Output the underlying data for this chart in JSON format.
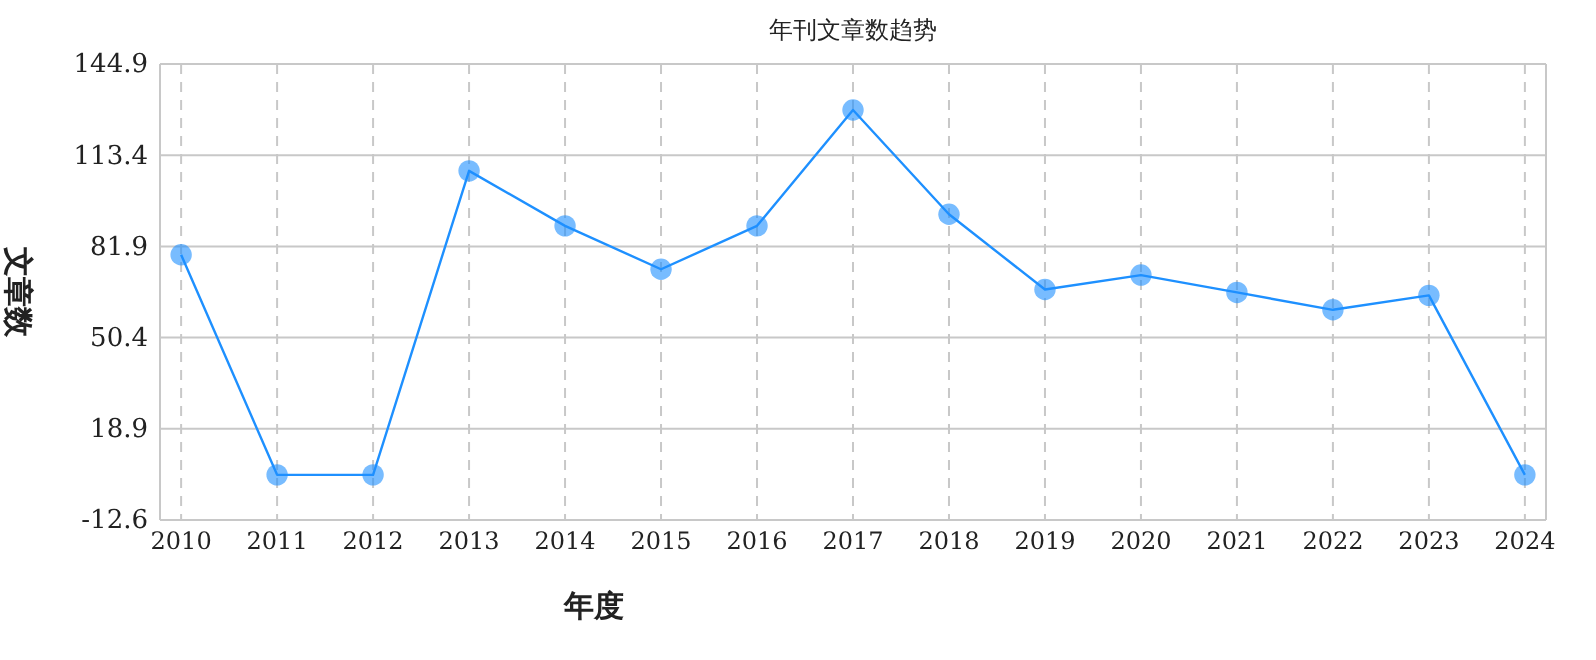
{
  "chart_data": {
    "type": "line",
    "title": "年刊文章数趋势",
    "xlabel": "年度",
    "ylabel": "文章数",
    "categories": [
      "2010",
      "2011",
      "2012",
      "2013",
      "2014",
      "2015",
      "2016",
      "2017",
      "2018",
      "2019",
      "2020",
      "2021",
      "2022",
      "2023",
      "2024"
    ],
    "series": [
      {
        "color": "#1e90ff",
        "values": [
          79,
          3,
          3,
          108,
          89,
          74,
          89,
          129,
          93,
          67,
          72,
          66,
          60,
          65,
          3
        ]
      }
    ],
    "ylim": [
      -12.6,
      144.9
    ],
    "yticks": [
      -12.6,
      18.9,
      50.4,
      81.9,
      113.4,
      144.9
    ],
    "grid": true,
    "marker": "circle",
    "line_style": "solid"
  }
}
